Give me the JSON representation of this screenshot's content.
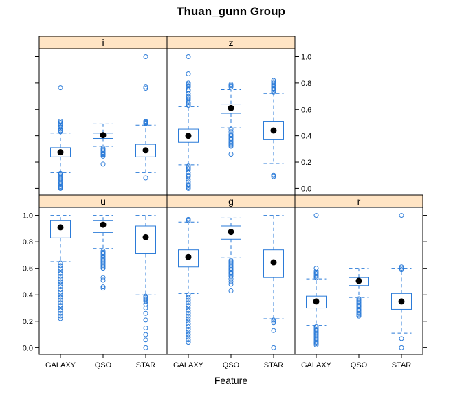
{
  "chart_data": {
    "type": "boxplot",
    "title": "Thuan_gunn Group",
    "xlabel": "Feature",
    "ylabel": "",
    "categories": [
      "GALAXY",
      "QSO",
      "STAR"
    ],
    "ylim": [
      -0.05,
      1.06
    ],
    "yticks": [
      0.0,
      0.2,
      0.4,
      0.6,
      0.8,
      1.0
    ],
    "ytick_labels": [
      "0.0",
      "0.2",
      "0.4",
      "0.6",
      "0.8",
      "1.0"
    ],
    "colors": {
      "box": "#2b7bd8",
      "strip": "#ffe4c4",
      "median_dot": "#000000",
      "frame": "#000000"
    },
    "panels": [
      {
        "label": "i",
        "groups": [
          {
            "category": "GALAXY",
            "whisker_low": 0.12,
            "q1": 0.24,
            "median": 0.275,
            "q3": 0.31,
            "whisker_high": 0.42,
            "outliers": [
              0.765,
              0.51,
              0.5,
              0.49,
              0.48,
              0.465,
              0.45,
              0.44,
              0.43,
              0.115,
              0.105,
              0.095,
              0.085,
              0.075,
              0.065,
              0.055,
              0.045,
              0.035,
              0.025,
              0.015,
              0.008,
              0.0
            ]
          },
          {
            "category": "QSO",
            "whisker_low": 0.32,
            "q1": 0.38,
            "median": 0.405,
            "q3": 0.42,
            "whisker_high": 0.49,
            "outliers": [
              0.305,
              0.295,
              0.285,
              0.275,
              0.265,
              0.26,
              0.255,
              0.245,
              0.185
            ]
          },
          {
            "category": "STAR",
            "whisker_low": 0.12,
            "q1": 0.24,
            "median": 0.29,
            "q3": 0.335,
            "whisker_high": 0.48,
            "outliers": [
              1.0,
              0.77,
              0.76,
              0.51,
              0.505,
              0.5,
              0.495,
              0.49,
              0.08
            ]
          }
        ]
      },
      {
        "label": "z",
        "groups": [
          {
            "category": "GALAXY",
            "whisker_low": 0.18,
            "q1": 0.35,
            "median": 0.4,
            "q3": 0.45,
            "whisker_high": 0.62,
            "outliers": [
              1.0,
              0.87,
              0.8,
              0.79,
              0.78,
              0.77,
              0.75,
              0.74,
              0.72,
              0.7,
              0.69,
              0.68,
              0.67,
              0.65,
              0.64,
              0.63,
              0.17,
              0.16,
              0.15,
              0.14,
              0.12,
              0.1,
              0.09,
              0.07,
              0.05,
              0.03,
              0.02,
              0.01,
              0.0
            ]
          },
          {
            "category": "QSO",
            "whisker_low": 0.46,
            "q1": 0.57,
            "median": 0.61,
            "q3": 0.64,
            "whisker_high": 0.75,
            "outliers": [
              0.79,
              0.78,
              0.77,
              0.45,
              0.43,
              0.41,
              0.4,
              0.39,
              0.38,
              0.37,
              0.36,
              0.35,
              0.34,
              0.33,
              0.32,
              0.26
            ]
          },
          {
            "category": "STAR",
            "whisker_low": 0.19,
            "q1": 0.37,
            "median": 0.44,
            "q3": 0.51,
            "whisker_high": 0.72,
            "outliers": [
              0.82,
              0.81,
              0.8,
              0.79,
              0.78,
              0.77,
              0.76,
              0.75,
              0.74,
              0.73,
              0.1,
              0.09
            ]
          }
        ]
      },
      {
        "label": "u",
        "groups": [
          {
            "category": "GALAXY",
            "whisker_low": 0.65,
            "q1": 0.83,
            "median": 0.91,
            "q3": 0.96,
            "whisker_high": 1.0,
            "outliers": [
              0.64,
              0.62,
              0.6,
              0.58,
              0.56,
              0.54,
              0.52,
              0.5,
              0.48,
              0.46,
              0.44,
              0.42,
              0.4,
              0.38,
              0.36,
              0.34,
              0.32,
              0.3,
              0.28,
              0.26,
              0.24,
              0.22
            ]
          },
          {
            "category": "QSO",
            "whisker_low": 0.75,
            "q1": 0.87,
            "median": 0.93,
            "q3": 0.96,
            "whisker_high": 1.0,
            "outliers": [
              0.73,
              0.72,
              0.71,
              0.7,
              0.69,
              0.68,
              0.67,
              0.66,
              0.65,
              0.64,
              0.63,
              0.62,
              0.61,
              0.6,
              0.53,
              0.51,
              0.46,
              0.45
            ]
          },
          {
            "category": "STAR",
            "whisker_low": 0.4,
            "q1": 0.71,
            "median": 0.835,
            "q3": 0.92,
            "whisker_high": 1.0,
            "outliers": [
              0.39,
              0.38,
              0.37,
              0.36,
              0.35,
              0.33,
              0.3,
              0.26,
              0.21,
              0.15,
              0.1,
              0.06,
              0.0
            ]
          }
        ]
      },
      {
        "label": "g",
        "groups": [
          {
            "category": "GALAXY",
            "whisker_low": 0.41,
            "q1": 0.61,
            "median": 0.685,
            "q3": 0.74,
            "whisker_high": 0.95,
            "outliers": [
              0.97,
              0.96,
              0.4,
              0.38,
              0.36,
              0.34,
              0.32,
              0.3,
              0.28,
              0.26,
              0.24,
              0.22,
              0.2,
              0.18,
              0.16,
              0.14,
              0.12,
              0.1,
              0.08,
              0.06,
              0.04
            ]
          },
          {
            "category": "QSO",
            "whisker_low": 0.68,
            "q1": 0.82,
            "median": 0.875,
            "q3": 0.92,
            "whisker_high": 0.98,
            "outliers": [
              0.66,
              0.65,
              0.64,
              0.63,
              0.62,
              0.61,
              0.6,
              0.59,
              0.58,
              0.57,
              0.56,
              0.55,
              0.54,
              0.52,
              0.5,
              0.48,
              0.43
            ]
          },
          {
            "category": "STAR",
            "whisker_low": 0.22,
            "q1": 0.53,
            "median": 0.645,
            "q3": 0.74,
            "whisker_high": 1.0,
            "outliers": [
              0.21,
              0.2,
              0.19,
              0.13,
              0.0
            ]
          }
        ]
      },
      {
        "label": "r",
        "groups": [
          {
            "category": "GALAXY",
            "whisker_low": 0.17,
            "q1": 0.3,
            "median": 0.35,
            "q3": 0.39,
            "whisker_high": 0.52,
            "outliers": [
              1.0,
              0.6,
              0.58,
              0.57,
              0.56,
              0.55,
              0.54,
              0.53,
              0.16,
              0.15,
              0.14,
              0.13,
              0.12,
              0.11,
              0.1,
              0.09,
              0.08,
              0.07,
              0.06,
              0.05,
              0.04,
              0.03,
              0.02
            ]
          },
          {
            "category": "QSO",
            "whisker_low": 0.38,
            "q1": 0.47,
            "median": 0.505,
            "q3": 0.53,
            "whisker_high": 0.6,
            "outliers": [
              0.37,
              0.36,
              0.35,
              0.34,
              0.33,
              0.32,
              0.31,
              0.3,
              0.29,
              0.28,
              0.27,
              0.26,
              0.25,
              0.24
            ]
          },
          {
            "category": "STAR",
            "whisker_low": 0.11,
            "q1": 0.29,
            "median": 0.35,
            "q3": 0.41,
            "whisker_high": 0.6,
            "outliers": [
              1.0,
              0.61,
              0.6,
              0.59,
              0.07,
              0.0
            ]
          }
        ]
      }
    ]
  }
}
